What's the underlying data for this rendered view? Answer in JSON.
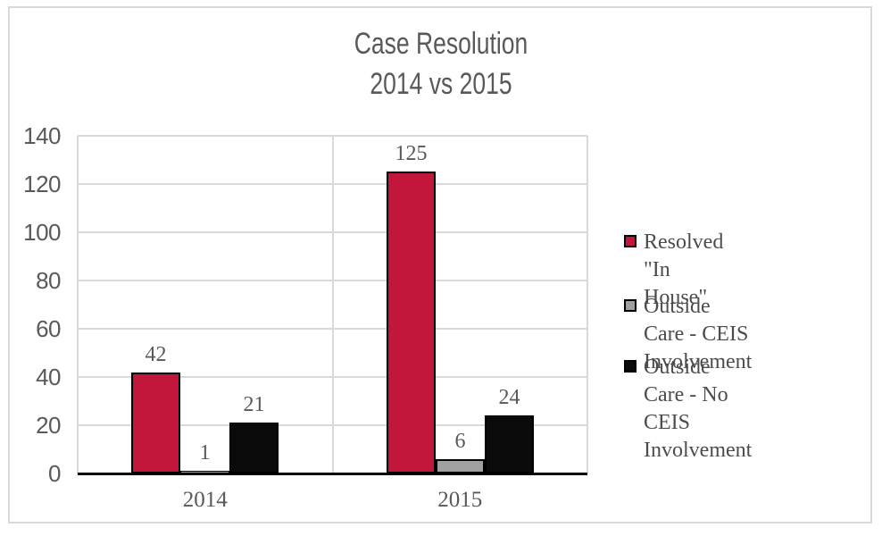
{
  "title": {
    "line1": "Case Resolution",
    "line2": "2014 vs 2015"
  },
  "chart_data": {
    "type": "bar",
    "title": "Case Resolution 2014 vs 2015",
    "categories": [
      "2014",
      "2015"
    ],
    "series": [
      {
        "name": "Resolved \"In House\"",
        "values": [
          42,
          125
        ],
        "fill": "#C2173B",
        "border": "#000000"
      },
      {
        "name": "Outside Care - CEIS Involvement",
        "values": [
          1,
          6
        ],
        "fill": "#A0A0A0",
        "border": "#000000"
      },
      {
        "name": "Outside Care - No CEIS Involvement",
        "values": [
          21,
          24
        ],
        "fill": "#0A0A0A",
        "border": "#000000"
      }
    ],
    "y_ticks": [
      0,
      20,
      40,
      60,
      80,
      100,
      120,
      140
    ],
    "ylim": [
      0,
      140
    ],
    "grid": true,
    "data_labels": true,
    "legend_position": "right"
  },
  "legend": {
    "entries": [
      {
        "label": "Resolved \"In House\"",
        "fill": "#C2173B",
        "border": "#000000"
      },
      {
        "label": "Outside Care - CEIS\nInvolvement",
        "fill": "#A0A0A0",
        "border": "#000000"
      },
      {
        "label": "Outside Care - No CEIS\nInvolvement",
        "fill": "#0A0A0A",
        "border": "#000000"
      }
    ]
  },
  "colors": {
    "text": "#595959",
    "legend_text": "#4C4C4C",
    "gridline": "#D9D9D9",
    "axis_line": "#000000",
    "frame_border": "#D9D9D9",
    "background": "#FFFFFF"
  }
}
